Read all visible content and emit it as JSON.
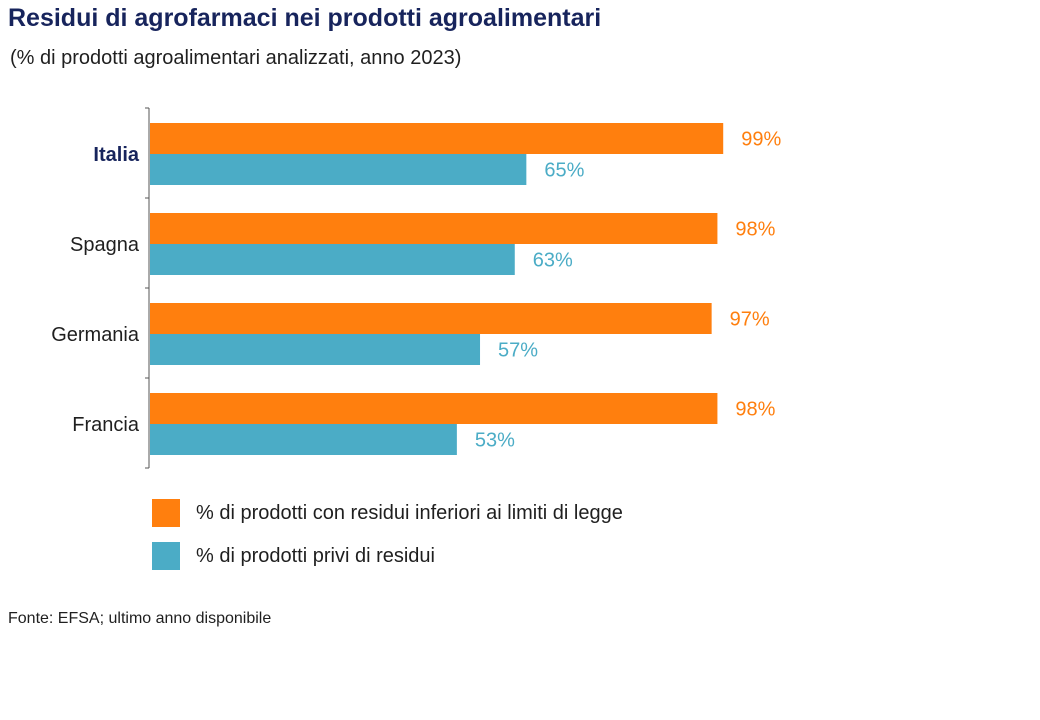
{
  "title": "Residui di agrofarmaci nei prodotti agroalimentari",
  "subtitle": "(% di prodotti agroalimentari analizzati, anno 2023)",
  "source": "Fonte: EFSA; ultimo anno disponibile",
  "chart_data": {
    "type": "bar",
    "orientation": "horizontal",
    "title": "Residui di agrofarmaci nei prodotti agroalimentari",
    "subtitle": "(% di prodotti agroalimentari analizzati, anno 2023)",
    "categories": [
      "Italia",
      "Spagna",
      "Germania",
      "Francia"
    ],
    "highlight_category": "Italia",
    "series": [
      {
        "name": "% di prodotti con residui inferiori ai limiti di legge",
        "color": "#ff7f0e",
        "values": [
          99,
          98,
          97,
          98
        ],
        "labels": [
          "99%",
          "98%",
          "97%",
          "98%"
        ]
      },
      {
        "name": "% di prodotti privi di residui",
        "color": "#4bacc6",
        "values": [
          65,
          63,
          57,
          53
        ],
        "labels": [
          "65%",
          "63%",
          "57%",
          "53%"
        ]
      }
    ],
    "xlim": [
      0,
      100
    ],
    "xlabel": "",
    "ylabel": "",
    "grid": false,
    "legend": "bottom-left"
  }
}
